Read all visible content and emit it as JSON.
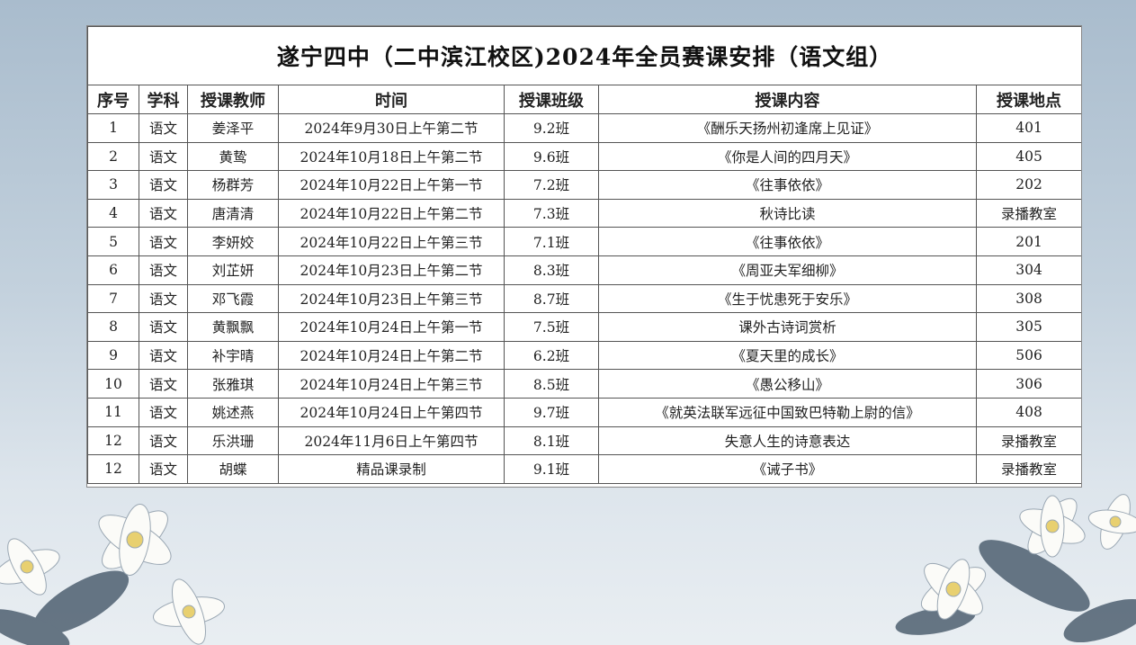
{
  "title": "遂宁四中（二中滨江校区)2024年全员赛课安排（语文组）",
  "headers": [
    "序号",
    "学科",
    "授课教师",
    "时间",
    "授课班级",
    "授课内容",
    "授课地点"
  ],
  "rows": [
    [
      "1",
      "语文",
      "姜泽平",
      "2024年9月30日上午第二节",
      "9.2班",
      "《酬乐天扬州初逢席上见证》",
      "401"
    ],
    [
      "2",
      "语文",
      "黄鸷",
      "2024年10月18日上午第二节",
      "9.6班",
      "《你是人间的四月天》",
      "405"
    ],
    [
      "3",
      "语文",
      "杨群芳",
      "2024年10月22日上午第一节",
      "7.2班",
      "《往事依依》",
      "202"
    ],
    [
      "4",
      "语文",
      "唐清清",
      "2024年10月22日上午第二节",
      "7.3班",
      "秋诗比读",
      "录播教室"
    ],
    [
      "5",
      "语文",
      "李妍姣",
      "2024年10月22日上午第三节",
      "7.1班",
      "《往事依依》",
      "201"
    ],
    [
      "6",
      "语文",
      "刘芷妍",
      "2024年10月23日上午第二节",
      "8.3班",
      "《周亚夫军细柳》",
      "304"
    ],
    [
      "7",
      "语文",
      "邓飞霞",
      "2024年10月23日上午第三节",
      "8.7班",
      "《生于忧患死于安乐》",
      "308"
    ],
    [
      "8",
      "语文",
      "黄飘飘",
      "2024年10月24日上午第一节",
      "7.5班",
      "课外古诗词赏析",
      "305"
    ],
    [
      "9",
      "语文",
      "补宇晴",
      "2024年10月24日上午第二节",
      "6.2班",
      "《夏天里的成长》",
      "506"
    ],
    [
      "10",
      "语文",
      "张雅琪",
      "2024年10月24日上午第三节",
      "8.5班",
      "《愚公移山》",
      "306"
    ],
    [
      "11",
      "语文",
      "姚述燕",
      "2024年10月24日上午第四节",
      "9.7班",
      "《就英法联军远征中国致巴特勒上尉的信》",
      "408"
    ],
    [
      "12",
      "语文",
      "乐洪珊",
      "2024年11月6日上午第四节",
      "8.1班",
      "失意人生的诗意表达",
      "录播教室"
    ],
    [
      "12",
      "语文",
      "胡蝶",
      "精品课录制",
      "9.1班",
      "《诫子书》",
      "录播教室"
    ]
  ]
}
